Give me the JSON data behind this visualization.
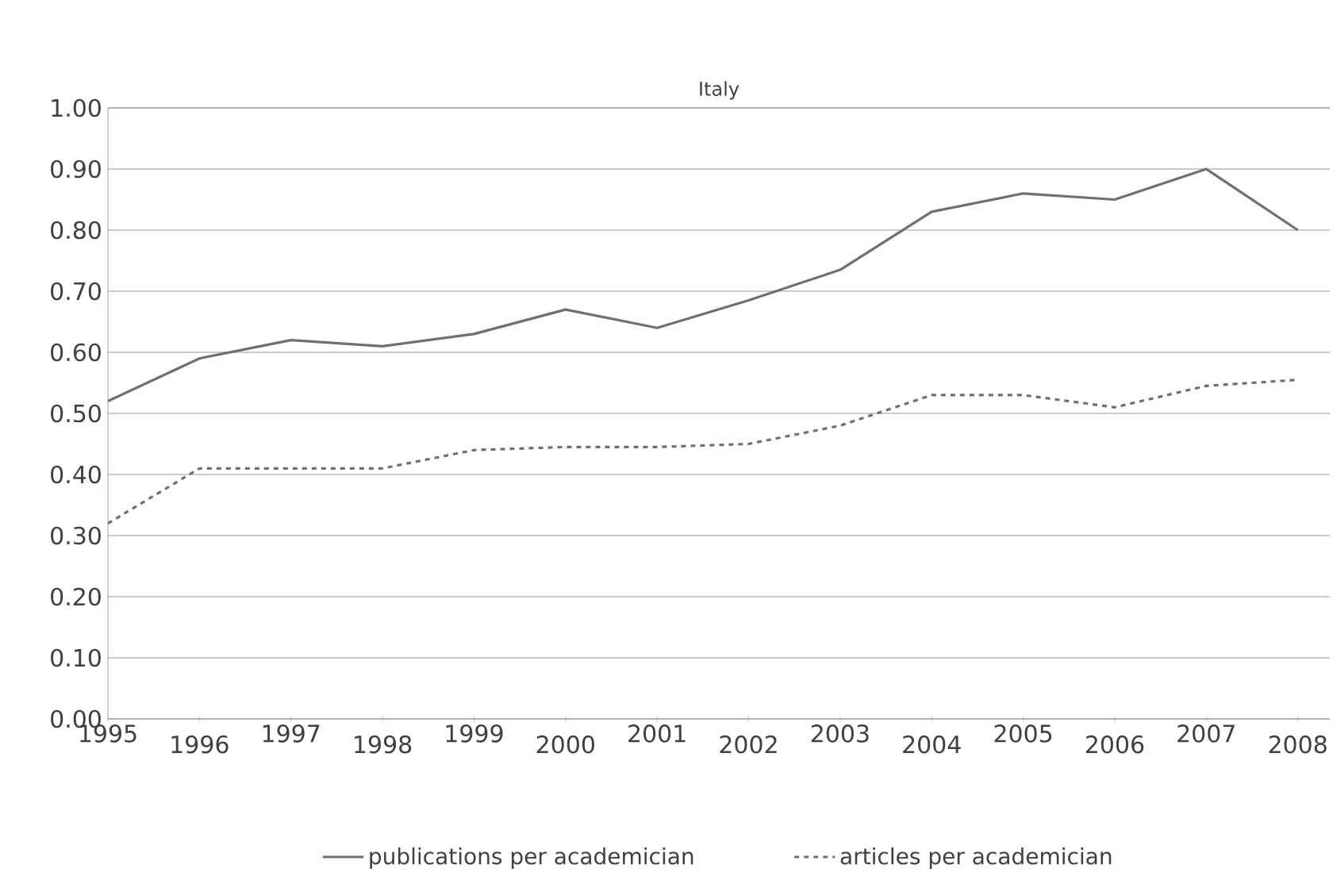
{
  "chart_data": {
    "type": "line",
    "title": "Italy",
    "categories": [
      "1995",
      "1996",
      "1997",
      "1998",
      "1999",
      "2000",
      "2001",
      "2002",
      "2003",
      "2004",
      "2005",
      "2006",
      "2007",
      "2008"
    ],
    "series": [
      {
        "name": "publications per academician",
        "color": "#707070",
        "line_style": "solid",
        "values": [
          0.52,
          0.59,
          0.62,
          0.61,
          0.63,
          0.67,
          0.64,
          0.685,
          0.735,
          0.83,
          0.86,
          0.85,
          0.9,
          0.8
        ]
      },
      {
        "name": "articles per academician",
        "color": "#707070",
        "line_style": "dashed",
        "values": [
          0.32,
          0.41,
          0.41,
          0.41,
          0.44,
          0.445,
          0.445,
          0.45,
          0.48,
          0.53,
          0.53,
          0.51,
          0.545,
          0.555
        ]
      }
    ],
    "ylim": [
      0,
      1
    ],
    "yticks": [
      {
        "value": 0,
        "label": "0.00"
      },
      {
        "value": 0.1,
        "label": "0.10"
      },
      {
        "value": 0.2,
        "label": "0.20"
      },
      {
        "value": 0.3,
        "label": "0.30"
      },
      {
        "value": 0.4,
        "label": "0.40"
      },
      {
        "value": 0.5,
        "label": "0.50"
      },
      {
        "value": 0.6,
        "label": "0.60"
      },
      {
        "value": 0.7,
        "label": "0.70"
      },
      {
        "value": 0.8,
        "label": "0.80"
      },
      {
        "value": 0.9,
        "label": "0.90"
      },
      {
        "value": 1,
        "label": "1.00"
      }
    ],
    "grid": "y",
    "legend": "bottom",
    "marker": "none"
  }
}
